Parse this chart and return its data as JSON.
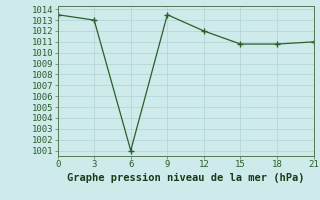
{
  "x": [
    0,
    3,
    6,
    9,
    12,
    15,
    18,
    21
  ],
  "y": [
    1013.5,
    1013.0,
    1001.0,
    1013.5,
    1012.0,
    1010.8,
    1010.8,
    1011.0
  ],
  "line_color": "#2a5f2a",
  "marker": "+",
  "title": "Graphe pression niveau de la mer (hPa)",
  "xlim": [
    0,
    21
  ],
  "ylim_min": 1000.5,
  "ylim_max": 1014.3,
  "xticks": [
    0,
    3,
    6,
    9,
    12,
    15,
    18,
    21
  ],
  "yticks": [
    1001,
    1002,
    1003,
    1004,
    1005,
    1006,
    1007,
    1008,
    1009,
    1010,
    1011,
    1012,
    1013,
    1014
  ],
  "bg_color": "#ceeaea",
  "grid_color": "#b0d4d4",
  "title_fontsize": 7.5,
  "tick_fontsize": 6.5
}
